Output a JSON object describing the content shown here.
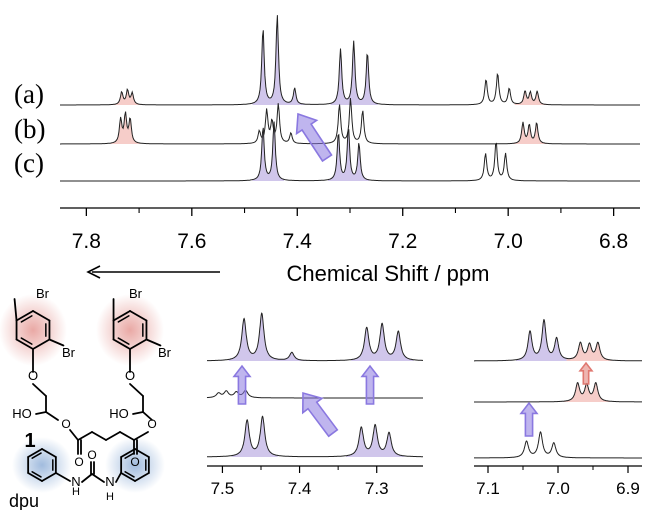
{
  "chart_data": [
    {
      "type": "line",
      "panel": "main",
      "xlabel": "Chemical Shift / ppm",
      "xlim": [
        7.85,
        6.75
      ],
      "x_reversed": true,
      "xticks": [
        "7.8",
        "7.6",
        "7.4",
        "7.2",
        "7.0",
        "6.8"
      ],
      "series": [
        {
          "name": "(a)",
          "peaks": [
            {
              "ppm": 7.733,
              "height": 0.42,
              "region": "pink"
            },
            {
              "ppm": 7.722,
              "height": 0.48,
              "region": "pink"
            },
            {
              "ppm": 7.713,
              "height": 0.38,
              "region": "pink"
            },
            {
              "ppm": 7.465,
              "height": 2.55,
              "region": "purple"
            },
            {
              "ppm": 7.438,
              "height": 3.0,
              "region": "purple"
            },
            {
              "ppm": 7.405,
              "height": 0.55,
              "region": "purple"
            },
            {
              "ppm": 7.318,
              "height": 1.85,
              "region": "purple"
            },
            {
              "ppm": 7.293,
              "height": 2.1,
              "region": "purple"
            },
            {
              "ppm": 7.267,
              "height": 1.75,
              "region": "purple"
            },
            {
              "ppm": 7.042,
              "height": 0.85,
              "region": "none"
            },
            {
              "ppm": 7.02,
              "height": 1.05,
              "region": "none"
            },
            {
              "ppm": 6.998,
              "height": 0.55,
              "region": "none"
            },
            {
              "ppm": 6.968,
              "height": 0.45,
              "region": "pink"
            },
            {
              "ppm": 6.958,
              "height": 0.4,
              "region": "pink"
            },
            {
              "ppm": 6.945,
              "height": 0.45,
              "region": "pink"
            }
          ]
        },
        {
          "name": "(b)",
          "peaks": [
            {
              "ppm": 7.735,
              "height": 0.8,
              "region": "pink"
            },
            {
              "ppm": 7.726,
              "height": 0.95,
              "region": "pink"
            },
            {
              "ppm": 7.717,
              "height": 0.8,
              "region": "pink"
            },
            {
              "ppm": 7.472,
              "height": 0.4,
              "region": "none"
            },
            {
              "ppm": 7.458,
              "height": 1.1,
              "region": "none"
            },
            {
              "ppm": 7.448,
              "height": 0.7,
              "region": "none"
            },
            {
              "ppm": 7.436,
              "height": 1.3,
              "region": "none"
            },
            {
              "ppm": 7.412,
              "height": 0.35,
              "region": "none"
            },
            {
              "ppm": 7.32,
              "height": 1.3,
              "region": "none"
            },
            {
              "ppm": 7.299,
              "height": 1.5,
              "region": "none"
            },
            {
              "ppm": 7.276,
              "height": 1.1,
              "region": "none"
            },
            {
              "ppm": 6.972,
              "height": 0.7,
              "region": "pink"
            },
            {
              "ppm": 6.96,
              "height": 0.62,
              "region": "pink"
            },
            {
              "ppm": 6.946,
              "height": 0.7,
              "region": "pink"
            }
          ]
        },
        {
          "name": "(c)",
          "peaks": [
            {
              "ppm": 7.465,
              "height": 1.8,
              "region": "purple"
            },
            {
              "ppm": 7.444,
              "height": 1.95,
              "region": "purple"
            },
            {
              "ppm": 7.322,
              "height": 1.6,
              "region": "purple"
            },
            {
              "ppm": 7.303,
              "height": 1.75,
              "region": "purple"
            },
            {
              "ppm": 7.283,
              "height": 1.25,
              "region": "purple"
            },
            {
              "ppm": 7.043,
              "height": 0.9,
              "region": "none"
            },
            {
              "ppm": 7.023,
              "height": 1.3,
              "region": "none"
            },
            {
              "ppm": 7.005,
              "height": 0.9,
              "region": "none"
            }
          ]
        }
      ]
    },
    {
      "type": "line",
      "panel": "zoom-left",
      "xlim": [
        7.52,
        7.24
      ],
      "x_reversed": true,
      "xticks": [
        "7.5",
        "7.4",
        "7.3"
      ],
      "series": [
        {
          "name": "(a)",
          "peaks": [
            {
              "ppm": 7.472,
              "height": 2.3,
              "region": "purple"
            },
            {
              "ppm": 7.449,
              "height": 2.6,
              "region": "purple"
            },
            {
              "ppm": 7.41,
              "height": 0.45,
              "region": "purple"
            },
            {
              "ppm": 7.313,
              "height": 1.8,
              "region": "purple"
            },
            {
              "ppm": 7.293,
              "height": 2.0,
              "region": "purple"
            },
            {
              "ppm": 7.272,
              "height": 1.6,
              "region": "purple"
            }
          ]
        },
        {
          "name": "(b)",
          "peaks": [
            {
              "ppm": 7.505,
              "height": 0.25,
              "region": "none"
            },
            {
              "ppm": 7.495,
              "height": 0.35,
              "region": "none"
            },
            {
              "ppm": 7.482,
              "height": 0.3,
              "region": "none"
            },
            {
              "ppm": 7.47,
              "height": 0.4,
              "region": "none"
            }
          ]
        },
        {
          "name": "(c)",
          "peaks": [
            {
              "ppm": 7.468,
              "height": 2.0,
              "region": "purple"
            },
            {
              "ppm": 7.448,
              "height": 2.2,
              "region": "purple"
            },
            {
              "ppm": 7.32,
              "height": 1.6,
              "region": "purple"
            },
            {
              "ppm": 7.302,
              "height": 1.7,
              "region": "purple"
            },
            {
              "ppm": 7.284,
              "height": 1.3,
              "region": "purple"
            }
          ]
        }
      ]
    },
    {
      "type": "line",
      "panel": "zoom-right",
      "xlim": [
        7.12,
        6.88
      ],
      "x_reversed": true,
      "xticks": [
        "7.1",
        "7.0",
        "6.9"
      ],
      "series": [
        {
          "name": "(a)",
          "peaks": [
            {
              "ppm": 7.04,
              "height": 1.6,
              "region": "purple"
            },
            {
              "ppm": 7.02,
              "height": 2.2,
              "region": "purple"
            },
            {
              "ppm": 7.002,
              "height": 1.2,
              "region": "purple"
            },
            {
              "ppm": 6.968,
              "height": 0.95,
              "region": "pink"
            },
            {
              "ppm": 6.955,
              "height": 0.85,
              "region": "pink"
            },
            {
              "ppm": 6.943,
              "height": 0.95,
              "region": "pink"
            }
          ]
        },
        {
          "name": "(b)",
          "peaks": [
            {
              "ppm": 6.972,
              "height": 1.0,
              "region": "pink"
            },
            {
              "ppm": 6.959,
              "height": 0.9,
              "region": "pink"
            },
            {
              "ppm": 6.946,
              "height": 1.0,
              "region": "pink"
            }
          ]
        },
        {
          "name": "(c)",
          "peaks": [
            {
              "ppm": 7.045,
              "height": 0.9,
              "region": "none"
            },
            {
              "ppm": 7.025,
              "height": 1.4,
              "region": "none"
            },
            {
              "ppm": 7.006,
              "height": 0.8,
              "region": "none"
            }
          ]
        }
      ]
    }
  ],
  "structures": {
    "compound_number": "1",
    "compound2_label": "dpu",
    "br_label": "Br",
    "ho_label": "HO",
    "o_label": "O",
    "h_label": "H",
    "n_label": "N"
  },
  "colors": {
    "purple_fill": "#c8bce8",
    "pink_fill": "#f4c4c0",
    "arrow_purple": "#8a78e0",
    "arrow_pink": "#e07870",
    "struct_red_bg": "#e8a4a0",
    "struct_blue_bg": "#9cb8dc"
  }
}
